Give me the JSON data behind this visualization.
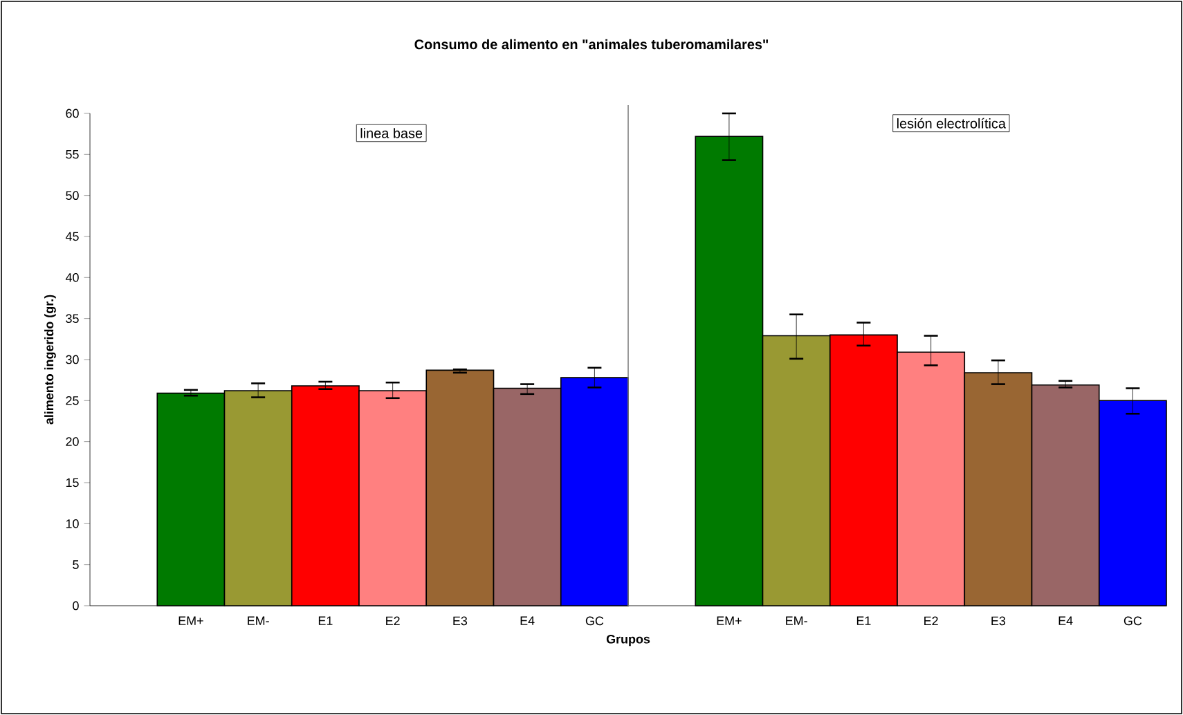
{
  "chart_data": {
    "type": "bar",
    "title": "Consumo de alimento en \"animales tuberomamilares\"",
    "xlabel": "Grupos",
    "ylabel": "alimento ingerido (gr.)",
    "categories": [
      null,
      "EM+",
      "EM-",
      "E1",
      "E2",
      "E3",
      "E4",
      "GC",
      null,
      "EM+",
      "EM-",
      "E1",
      "E2",
      "E3",
      "E4",
      "GC"
    ],
    "values": [
      null,
      25.9,
      26.2,
      26.8,
      26.2,
      28.7,
      26.5,
      27.8,
      null,
      57.2,
      32.9,
      33.0,
      30.9,
      28.4,
      26.9,
      25.0
    ],
    "colors": [
      null,
      "#007a00",
      "#999933",
      "#ff0000",
      "#ff8080",
      "#996633",
      "#996666",
      "#0000ff",
      null,
      "#007a00",
      "#999933",
      "#ff0000",
      "#ff8080",
      "#996633",
      "#996666",
      "#0000ff"
    ],
    "errors": [
      null,
      [
        25.6,
        26.3
      ],
      [
        25.4,
        27.1
      ],
      [
        26.4,
        27.3
      ],
      [
        25.3,
        27.2
      ],
      [
        28.4,
        28.8
      ],
      [
        25.8,
        27.0
      ],
      [
        26.6,
        29.0
      ],
      null,
      [
        54.3,
        60.0
      ],
      [
        30.1,
        35.5
      ],
      [
        31.7,
        34.5
      ],
      [
        29.3,
        32.9
      ],
      [
        27.0,
        29.9
      ],
      [
        26.6,
        27.4
      ],
      [
        23.4,
        26.5
      ]
    ],
    "ylim": [
      0,
      60
    ],
    "yticks": [
      0,
      5,
      10,
      15,
      20,
      25,
      30,
      35,
      40,
      45,
      50,
      55,
      60
    ],
    "annotations": [
      "linea base",
      "lesión electrolítica"
    ],
    "grid": false
  }
}
